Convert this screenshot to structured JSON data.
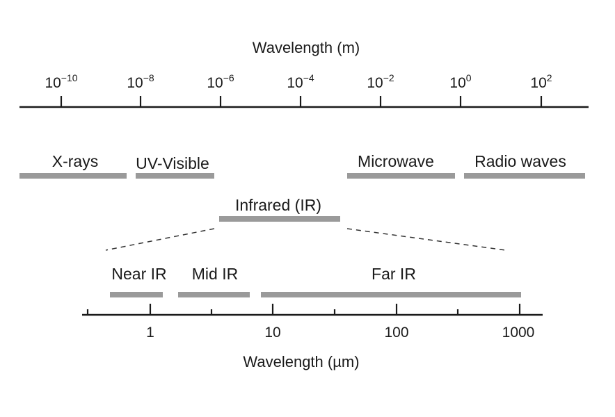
{
  "top_axis": {
    "title": "Wavelength (m)",
    "ticks": [
      {
        "base": "10",
        "exp": "−10"
      },
      {
        "base": "10",
        "exp": "−8"
      },
      {
        "base": "10",
        "exp": "−6"
      },
      {
        "base": "10",
        "exp": "−4"
      },
      {
        "base": "10",
        "exp": "−2"
      },
      {
        "base": "10",
        "exp": "0"
      },
      {
        "base": "10",
        "exp": "2"
      }
    ]
  },
  "regions": [
    {
      "label": "X-rays"
    },
    {
      "label": "UV-Visible"
    },
    {
      "label": "Microwave"
    },
    {
      "label": "Radio waves"
    },
    {
      "label": "Infrared (IR)"
    }
  ],
  "ir_subregions": [
    {
      "label": "Near IR"
    },
    {
      "label": "Mid IR"
    },
    {
      "label": "Far IR"
    }
  ],
  "bottom_axis": {
    "title": "Wavelength (µm)",
    "ticks": [
      "1",
      "10",
      "100",
      "1000"
    ]
  },
  "colors": {
    "band": "#9a9a9a",
    "axis": "#1a1a1a"
  }
}
